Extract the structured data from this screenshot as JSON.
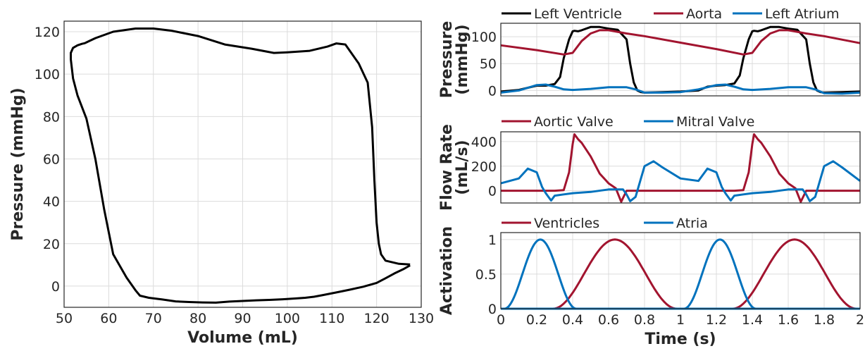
{
  "colors": {
    "black": "#000000",
    "red": "#a2142f",
    "blue": "#0072bd"
  },
  "chart_data": [
    {
      "type": "line",
      "id": "pv_loop",
      "xlabel": "Volume (mL)",
      "ylabel": "Pressure (mmHg)",
      "xlim": [
        50,
        130
      ],
      "ylim": [
        -10,
        125
      ],
      "xticks": [
        50,
        60,
        70,
        80,
        90,
        100,
        110,
        120,
        130
      ],
      "yticks": [
        0,
        20,
        40,
        60,
        80,
        100,
        120
      ],
      "grid": true,
      "series": [
        {
          "color": "black",
          "x": [
            127.5,
            125,
            122,
            121,
            120.5,
            120,
            119.5,
            119,
            118,
            116,
            113,
            111,
            109,
            105,
            100,
            97,
            92,
            86,
            80,
            74,
            70,
            66,
            61,
            57,
            55,
            54.6,
            54,
            53,
            52,
            51.5,
            51.5,
            52,
            53,
            55,
            57,
            59,
            61,
            64,
            66,
            67,
            69,
            72,
            75,
            78,
            81,
            84,
            87,
            90,
            93,
            96,
            99,
            102,
            104,
            106,
            108,
            111,
            114,
            117,
            120,
            122,
            124,
            126,
            127.5
          ],
          "y": [
            10.2,
            10.5,
            12,
            15,
            20,
            30,
            50,
            75,
            96,
            105,
            114,
            114.5,
            113,
            111,
            110.3,
            110,
            112,
            114,
            118,
            120.5,
            121.5,
            121.5,
            120,
            117,
            115,
            114.6,
            114.3,
            113.6,
            112.4,
            110,
            107,
            98,
            90,
            79,
            60,
            36,
            15,
            4,
            -2,
            -4.5,
            -5.5,
            -6.3,
            -7.2,
            -7.5,
            -7.7,
            -7.8,
            -7.3,
            -7,
            -6.7,
            -6.5,
            -6.2,
            -5.8,
            -5.5,
            -5,
            -4.2,
            -3,
            -1.7,
            -0.3,
            1.5,
            3.7,
            6,
            8,
            9.8
          ]
        }
      ]
    },
    {
      "type": "line",
      "id": "pressure",
      "ylabel": "Pressure\n(mmHg)",
      "xlim": [
        0,
        2
      ],
      "ylim": [
        -10,
        125
      ],
      "yticks": [
        0,
        50,
        100
      ],
      "grid": true,
      "legend": "top",
      "series": [
        {
          "name": "Left Ventricle",
          "color": "black",
          "x": [
            0,
            0.1,
            0.2,
            0.25,
            0.3,
            0.33,
            0.35,
            0.38,
            0.4,
            0.41,
            0.43,
            0.45,
            0.5,
            0.55,
            0.6,
            0.65,
            0.7,
            0.72,
            0.74,
            0.76,
            0.78,
            0.8,
            0.9,
            1.0,
            1.1,
            1.15,
            1.2,
            1.25,
            1.3,
            1.33,
            1.35,
            1.38,
            1.4,
            1.41,
            1.43,
            1.45,
            1.5,
            1.55,
            1.6,
            1.65,
            1.7,
            1.72,
            1.74,
            1.76,
            1.78,
            1.8,
            1.9,
            2.0
          ],
          "y": [
            -2,
            1,
            9,
            9,
            12,
            25,
            60,
            95,
            110,
            111,
            110,
            112,
            118,
            118,
            115,
            113,
            95,
            50,
            15,
            0,
            -3,
            -4,
            -3,
            -2,
            0,
            7,
            9,
            10,
            13,
            28,
            60,
            95,
            110,
            111,
            110,
            112,
            118,
            118,
            115,
            113,
            95,
            50,
            15,
            0,
            -3,
            -4,
            -3,
            -2
          ]
        },
        {
          "name": "Aorta",
          "color": "red",
          "x": [
            0,
            0.2,
            0.35,
            0.4,
            0.45,
            0.5,
            0.55,
            0.6,
            0.7,
            0.8,
            1.0,
            1.2,
            1.35,
            1.4,
            1.45,
            1.5,
            1.55,
            1.6,
            1.7,
            1.8,
            2.0
          ],
          "y": [
            84,
            75,
            67,
            70,
            92,
            106,
            112,
            112,
            106,
            101,
            89,
            77,
            67,
            70,
            92,
            106,
            112,
            112,
            106,
            101,
            88
          ]
        },
        {
          "name": "Left Atrium",
          "color": "blue",
          "x": [
            0,
            0.1,
            0.2,
            0.25,
            0.3,
            0.35,
            0.4,
            0.5,
            0.6,
            0.7,
            0.75,
            0.8,
            0.9,
            1.0,
            1.1,
            1.2,
            1.25,
            1.3,
            1.35,
            1.4,
            1.5,
            1.6,
            1.7,
            1.75,
            1.8,
            1.9,
            2.0
          ],
          "y": [
            -4,
            0,
            10,
            11,
            7,
            2,
            1,
            3,
            6,
            6,
            2,
            -4,
            -4,
            -3,
            2,
            10,
            11,
            7,
            2,
            1,
            3,
            6,
            6,
            2,
            -5,
            -6,
            -4
          ]
        }
      ]
    },
    {
      "type": "line",
      "id": "flow",
      "ylabel": "Flow Rate\n(mL/s)",
      "xlim": [
        0,
        2
      ],
      "ylim": [
        -100,
        480
      ],
      "yticks": [
        0,
        200,
        400
      ],
      "grid": true,
      "legend": "top",
      "series": [
        {
          "name": "Aortic Valve",
          "color": "red",
          "x": [
            0,
            0.3,
            0.35,
            0.38,
            0.4,
            0.41,
            0.43,
            0.45,
            0.5,
            0.55,
            0.6,
            0.64,
            0.67,
            0.68,
            0.7,
            0.75,
            1.0,
            1.3,
            1.35,
            1.38,
            1.4,
            1.41,
            1.43,
            1.45,
            1.5,
            1.55,
            1.6,
            1.64,
            1.67,
            1.68,
            1.7,
            1.75,
            2.0
          ],
          "y": [
            0,
            0,
            5,
            150,
            380,
            460,
            420,
            390,
            280,
            140,
            60,
            20,
            -90,
            -60,
            0,
            0,
            0,
            0,
            5,
            150,
            380,
            460,
            420,
            390,
            280,
            140,
            60,
            20,
            -90,
            -60,
            0,
            0,
            0
          ]
        },
        {
          "name": "Mitral Valve",
          "color": "blue",
          "x": [
            0,
            0.1,
            0.15,
            0.2,
            0.23,
            0.25,
            0.28,
            0.3,
            0.35,
            0.4,
            0.5,
            0.6,
            0.65,
            0.68,
            0.7,
            0.72,
            0.75,
            0.8,
            0.85,
            0.9,
            1.0,
            1.1,
            1.15,
            1.2,
            1.23,
            1.25,
            1.28,
            1.3,
            1.35,
            1.4,
            1.5,
            1.6,
            1.65,
            1.68,
            1.7,
            1.72,
            1.75,
            1.8,
            1.85,
            1.9,
            2.0
          ],
          "y": [
            60,
            100,
            180,
            150,
            30,
            -20,
            -80,
            -40,
            -30,
            -20,
            -10,
            10,
            10,
            10,
            -30,
            -85,
            -50,
            200,
            240,
            190,
            100,
            80,
            180,
            150,
            30,
            -20,
            -80,
            -40,
            -30,
            -20,
            -10,
            10,
            10,
            10,
            -30,
            -85,
            -50,
            200,
            240,
            190,
            80
          ]
        }
      ]
    },
    {
      "type": "line",
      "id": "activation",
      "xlabel": "Time (s)",
      "ylabel": "Activation",
      "xlim": [
        0,
        2
      ],
      "ylim": [
        0,
        1.1
      ],
      "xticks": [
        0,
        0.2,
        0.4,
        0.6,
        0.8,
        1,
        1.2,
        1.4,
        1.6,
        1.8,
        2
      ],
      "xtick_labels": [
        "0",
        "0.2",
        "0.4",
        "0.6",
        "0.8",
        "1",
        "1.2",
        "1.4",
        "1.6",
        "1.8",
        "2"
      ],
      "yticks": [
        0,
        0.5,
        1
      ],
      "grid": true,
      "legend": "top",
      "series": [
        {
          "name": "Ventricles",
          "color": "red",
          "pulses": [
            [
              0.29,
              0.98
            ],
            [
              1.29,
              1.98
            ]
          ]
        },
        {
          "name": "Atria",
          "color": "blue",
          "pulses": [
            [
              0.02,
              0.42
            ],
            [
              1.02,
              1.42
            ]
          ]
        }
      ]
    }
  ]
}
